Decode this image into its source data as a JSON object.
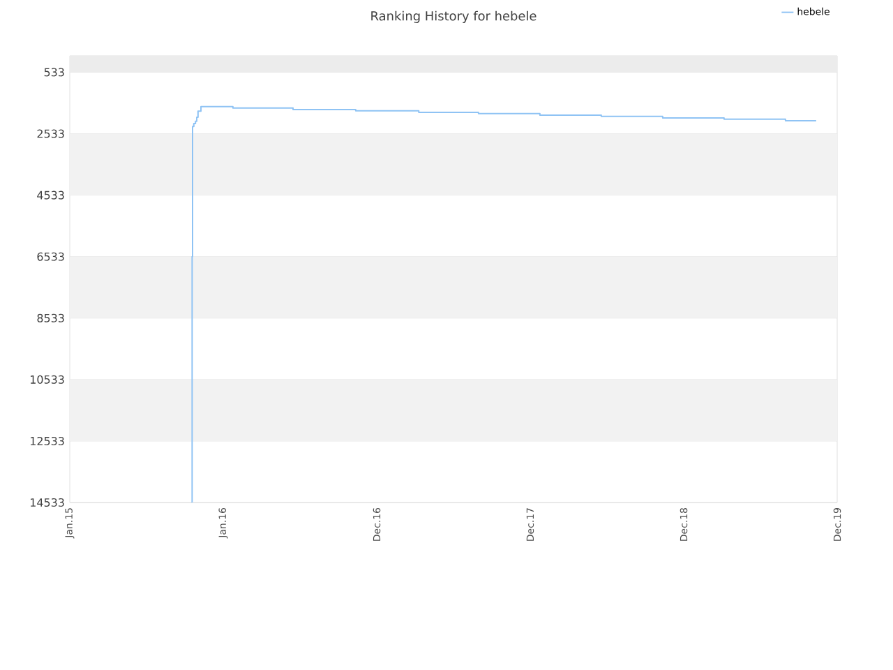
{
  "chart_data": {
    "type": "step",
    "title": "Ranking History for hebele",
    "x": [
      "2015-10-17",
      "2015-10-19",
      "2015-10-20",
      "2015-10-23",
      "2015-10-27",
      "2015-10-30",
      "2015-11-02",
      "2015-11-09",
      "2016-01-24",
      "2016-06-15",
      "2016-11-11",
      "2017-04-10",
      "2017-08-30",
      "2018-01-23",
      "2018-06-18",
      "2018-11-11",
      "2019-04-06",
      "2019-08-30",
      "2019-11-11"
    ],
    "series": [
      {
        "name": "hebele",
        "color": "#8fc3f4",
        "values": [
          14533,
          6533,
          2300,
          2200,
          2130,
          2000,
          1800,
          1650,
          1700,
          1750,
          1790,
          1840,
          1880,
          1930,
          1970,
          2020,
          2060,
          2110,
          2110
        ]
      }
    ],
    "xlim": [
      "2015-01-01",
      "2019-12-31"
    ],
    "xticks": [
      {
        "value": "2015-01-01",
        "label": "Jan.15"
      },
      {
        "value": "2016-01-01",
        "label": "Jan.16"
      },
      {
        "value": "2016-12-31",
        "label": "Dec.16"
      },
      {
        "value": "2017-12-31",
        "label": "Dec.17"
      },
      {
        "value": "2018-12-31",
        "label": "Dec.18"
      },
      {
        "value": "2019-12-31",
        "label": "Dec.19"
      }
    ],
    "ylim": [
      14533,
      0
    ],
    "yticks": [
      533,
      2533,
      4533,
      6533,
      8533,
      10533,
      12533,
      14533
    ],
    "bands": [
      {
        "axis": "y",
        "from": 0,
        "to": 533,
        "color": "#ececec"
      },
      {
        "axis": "y",
        "from": 2533,
        "to": 4533,
        "color": "#f2f2f2"
      },
      {
        "axis": "y",
        "from": 6533,
        "to": 8533,
        "color": "#f2f2f2"
      },
      {
        "axis": "y",
        "from": 10533,
        "to": 12533,
        "color": "#f2f2f2"
      }
    ],
    "grid": "y",
    "legend": "top right",
    "marker": "none",
    "line_style": "solid"
  }
}
